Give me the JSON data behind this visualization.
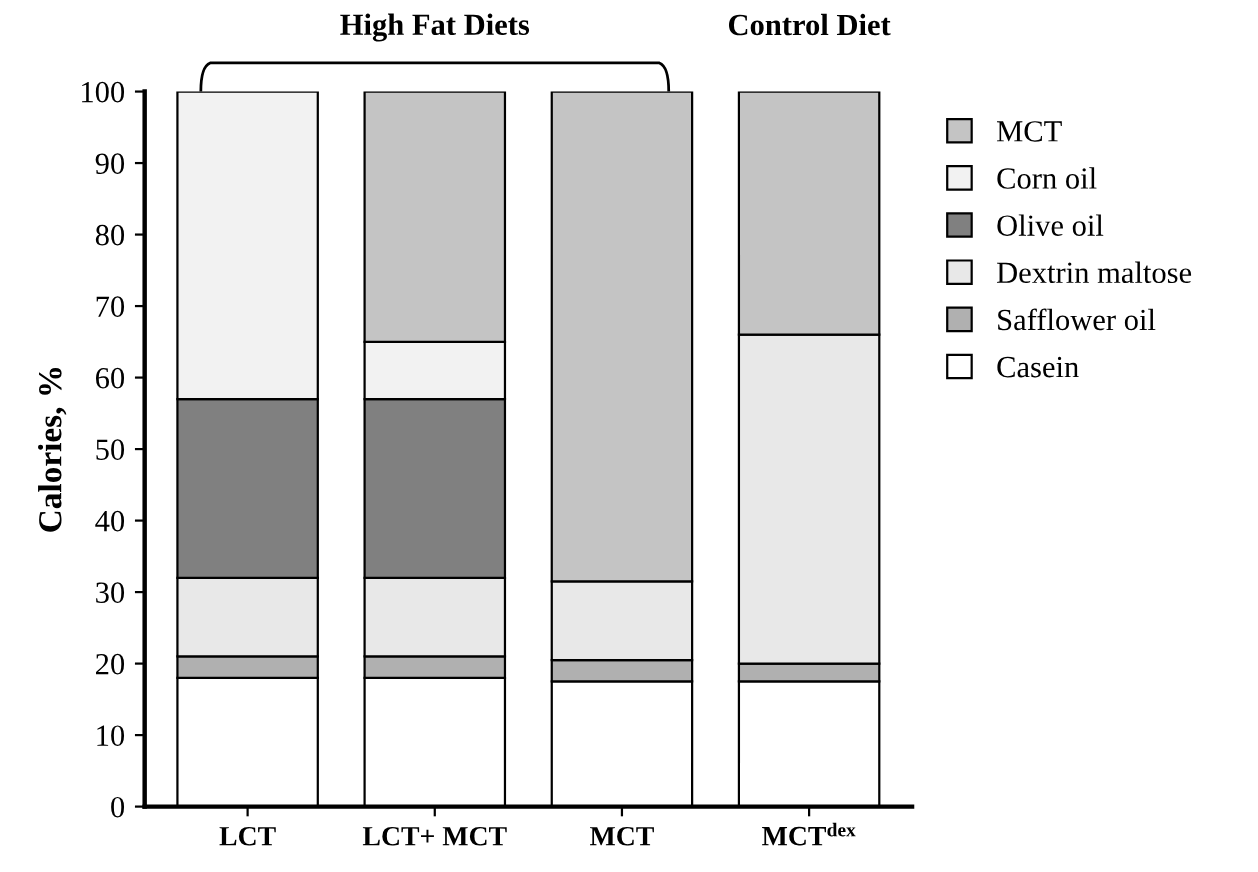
{
  "chart_data": {
    "type": "bar",
    "stacked": true,
    "ylabel": "Calories, %",
    "categories": [
      "LCT",
      "LCT+ MCT",
      "MCT",
      "MCT$^{dex}$"
    ],
    "series": [
      {
        "name": "Casein",
        "color": "#ffffff",
        "values": [
          18,
          18,
          17.5,
          17.5
        ]
      },
      {
        "name": "Safflower oil",
        "color": "#b0b0b0",
        "values": [
          3,
          3,
          3,
          2.5
        ]
      },
      {
        "name": "Dextrin maltose",
        "color": "#e8e8e8",
        "values": [
          11,
          11,
          11,
          46
        ]
      },
      {
        "name": "Olive oil",
        "color": "#808080",
        "values": [
          25,
          25,
          0,
          0
        ]
      },
      {
        "name": "Corn oil",
        "color": "#f2f2f2",
        "values": [
          43,
          8,
          0,
          0
        ]
      },
      {
        "name": "MCT",
        "color": "#c4c4c4",
        "values": [
          0,
          35,
          68.5,
          34
        ]
      }
    ],
    "ylim": [
      0,
      100
    ],
    "yticks": [
      0,
      10,
      20,
      30,
      40,
      50,
      60,
      70,
      80,
      90,
      100
    ],
    "grid": false,
    "legend": "right",
    "annotations": [
      "High Fat Diets",
      "Control Diet"
    ]
  }
}
